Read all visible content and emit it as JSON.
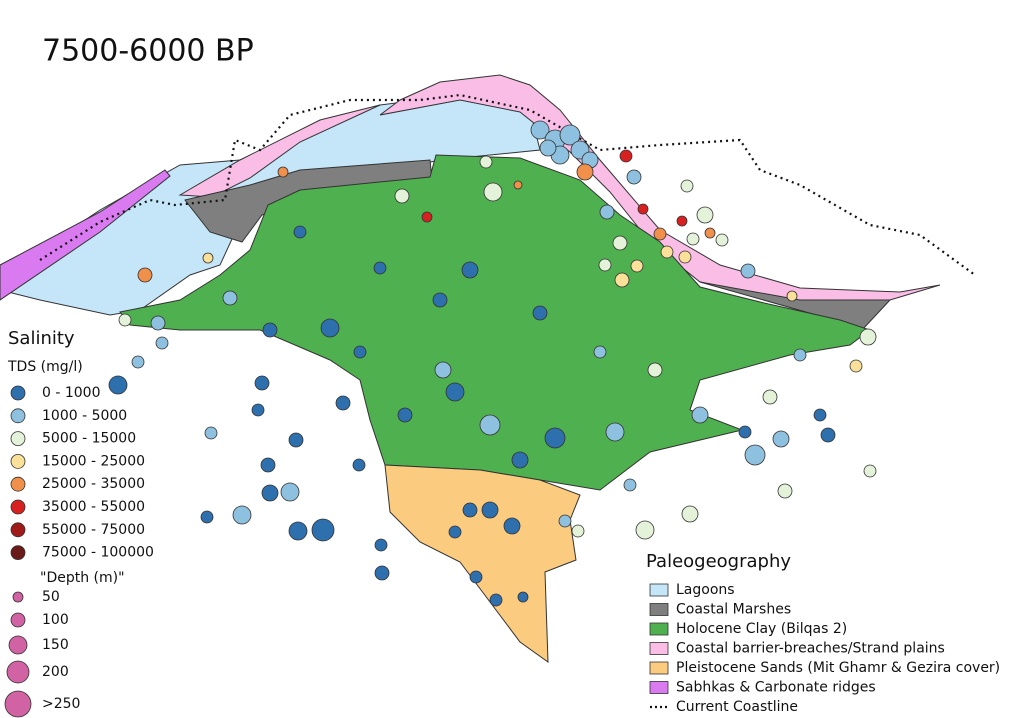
{
  "title": "7500-6000 BP",
  "salinity": {
    "title": "Salinity",
    "subtitle": "TDS (mg/l)",
    "classes": [
      {
        "label": "0 - 1000",
        "color": "#2e6fae"
      },
      {
        "label": "1000 - 5000",
        "color": "#8ec0df"
      },
      {
        "label": "5000 - 15000",
        "color": "#e3f2d9"
      },
      {
        "label": "15000 - 25000",
        "color": "#fbe09a"
      },
      {
        "label": "25000 - 35000",
        "color": "#f0904a"
      },
      {
        "label": "35000 - 55000",
        "color": "#d92020"
      },
      {
        "label": "55000 - 75000",
        "color": "#a01a1a"
      },
      {
        "label": "75000 - 100000",
        "color": "#6b1a1a"
      }
    ]
  },
  "depth": {
    "title": "\"Depth (m)\"",
    "color": "#d162a4",
    "sizes": [
      "50",
      "100",
      "150",
      "200",
      ">250"
    ]
  },
  "paleogeography": {
    "title": "Paleogeography",
    "items": [
      {
        "label": "Lagoons",
        "color": "#c5e6f9"
      },
      {
        "label": "Coastal Marshes",
        "color": "#7f7f7f"
      },
      {
        "label": "Holocene Clay (Bilqas 2)",
        "color": "#4fb04f"
      },
      {
        "label": "Coastal barrier-breaches/Strand plains",
        "color": "#f9bde6"
      },
      {
        "label": "Pleistocene Sands (Mit Ghamr & Gezira cover)",
        "color": "#fbcb80"
      },
      {
        "label": "Sabhkas & Carbonate ridges",
        "color": "#d97af0"
      }
    ],
    "coastline": "Current Coastline"
  }
}
